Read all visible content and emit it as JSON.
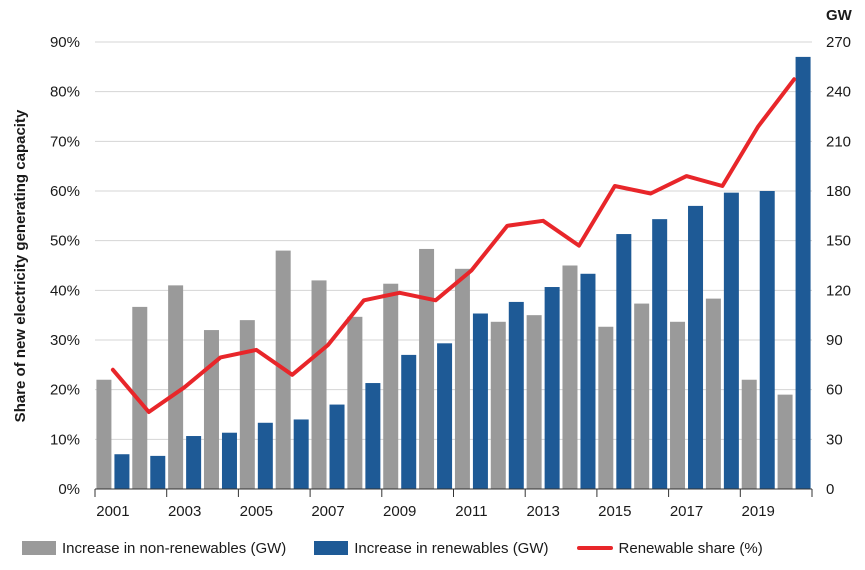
{
  "chart_data": {
    "type": "bar",
    "categories": [
      "2001",
      "2002",
      "2003",
      "2004",
      "2005",
      "2006",
      "2007",
      "2008",
      "2009",
      "2010",
      "2011",
      "2012",
      "2013",
      "2014",
      "2015",
      "2016",
      "2017",
      "2018",
      "2019",
      "2020"
    ],
    "x_tick_labels": [
      "2001",
      "2003",
      "2005",
      "2007",
      "2009",
      "2011",
      "2013",
      "2015",
      "2017",
      "2019"
    ],
    "series": [
      {
        "name": "Increase in non-renewables (GW)",
        "kind": "bar",
        "axis": "right",
        "color": "#9a9a9a",
        "values": [
          66,
          110,
          123,
          96,
          102,
          144,
          126,
          104,
          124,
          145,
          133,
          101,
          105,
          135,
          98,
          112,
          101,
          115,
          66,
          57
        ]
      },
      {
        "name": "Increase in renewables (GW)",
        "kind": "bar",
        "axis": "right",
        "color": "#1e5a96",
        "values": [
          21,
          20,
          32,
          34,
          40,
          42,
          51,
          64,
          81,
          88,
          106,
          113,
          122,
          130,
          154,
          163,
          171,
          179,
          180,
          261
        ]
      },
      {
        "name": "Renewable share (%)",
        "kind": "line",
        "axis": "left",
        "color": "#e8262a",
        "values": [
          24,
          15.5,
          20.5,
          26.5,
          28,
          23,
          29,
          38,
          39.5,
          38,
          44,
          53,
          54,
          49,
          61,
          59.5,
          63,
          61,
          73,
          82.5
        ]
      }
    ],
    "y_left": {
      "label": "Share of new electricity generating capacity",
      "ticks": [
        "0%",
        "10%",
        "20%",
        "30%",
        "40%",
        "50%",
        "60%",
        "70%",
        "80%",
        "90%"
      ],
      "ylim": [
        0,
        90
      ]
    },
    "y_right": {
      "unit": "GW",
      "ticks": [
        "0",
        "30",
        "60",
        "90",
        "120",
        "150",
        "180",
        "210",
        "240",
        "270"
      ],
      "ylim": [
        0,
        270
      ]
    },
    "grid": true,
    "legend_position": "bottom"
  },
  "legend": [
    {
      "label": "Increase in non-renewables (GW)",
      "color": "#9a9a9a",
      "shape": "bar"
    },
    {
      "label": "Increase in renewables (GW)",
      "color": "#1e5a96",
      "shape": "bar"
    },
    {
      "label": "Renewable share (%)",
      "color": "#e8262a",
      "shape": "line"
    }
  ]
}
